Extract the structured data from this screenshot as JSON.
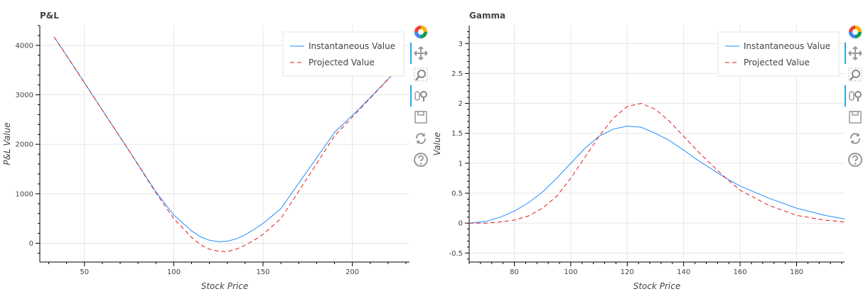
{
  "chart_data": [
    {
      "type": "line",
      "title": "P&L",
      "xlabel": "Stock Price",
      "ylabel": "P&L Value",
      "xlim": [
        25,
        232
      ],
      "ylim": [
        -380,
        4400
      ],
      "xticks": [
        50,
        100,
        150,
        200
      ],
      "yticks": [
        0,
        1000,
        2000,
        3000,
        4000
      ],
      "grid": true,
      "legend": "top-right",
      "series": [
        {
          "name": "Instantaneous Value",
          "color": "#1f8fff",
          "dash": "solid",
          "x": [
            33,
            45,
            60,
            75,
            90,
            100,
            110,
            115,
            120,
            125,
            130,
            135,
            140,
            145,
            150,
            160,
            175,
            190,
            205,
            222
          ],
          "y": [
            4170,
            3520,
            2690,
            1870,
            1040,
            570,
            250,
            130,
            60,
            30,
            40,
            90,
            170,
            280,
            400,
            700,
            1470,
            2240,
            2760,
            3390
          ]
        },
        {
          "name": "Projected Value",
          "color": "#e41a1c",
          "dash": "dashed",
          "x": [
            33,
            45,
            60,
            75,
            90,
            100,
            110,
            115,
            120,
            125,
            130,
            135,
            140,
            145,
            150,
            160,
            175,
            190,
            205,
            222
          ],
          "y": [
            4170,
            3520,
            2690,
            1870,
            1020,
            500,
            120,
            -30,
            -120,
            -160,
            -170,
            -120,
            -40,
            60,
            180,
            500,
            1330,
            2170,
            2740,
            3390
          ]
        }
      ]
    },
    {
      "type": "line",
      "title": "Gamma",
      "xlabel": "Stock Price",
      "ylabel": "Value",
      "xlim": [
        64,
        197
      ],
      "ylim": [
        -0.65,
        3.3
      ],
      "xticks": [
        80,
        100,
        120,
        140,
        160,
        180
      ],
      "yticks": [
        -0.5,
        0,
        0.5,
        1,
        1.5,
        2,
        2.5,
        3
      ],
      "ytick_labels": [
        "-0.5",
        "0",
        "0.5",
        "1",
        "1.5",
        "2",
        "2.5",
        "3"
      ],
      "grid": true,
      "legend": "top-right",
      "series": [
        {
          "name": "Instantaneous Value",
          "color": "#1f8fff",
          "dash": "solid",
          "x": [
            64,
            70,
            75,
            80,
            85,
            90,
            95,
            100,
            105,
            110,
            115,
            120,
            125,
            130,
            135,
            140,
            145,
            150,
            155,
            160,
            170,
            180,
            190,
            197
          ],
          "y": [
            0,
            0.03,
            0.1,
            0.2,
            0.34,
            0.52,
            0.75,
            1.0,
            1.25,
            1.45,
            1.57,
            1.62,
            1.6,
            1.5,
            1.38,
            1.22,
            1.05,
            0.9,
            0.75,
            0.62,
            0.42,
            0.25,
            0.13,
            0.07
          ]
        },
        {
          "name": "Projected Value",
          "color": "#e41a1c",
          "dash": "dashed",
          "x": [
            64,
            70,
            75,
            80,
            85,
            90,
            95,
            100,
            105,
            110,
            115,
            120,
            125,
            130,
            135,
            140,
            145,
            150,
            155,
            160,
            170,
            180,
            190,
            197
          ],
          "y": [
            0,
            0.0,
            0.02,
            0.05,
            0.12,
            0.25,
            0.45,
            0.75,
            1.1,
            1.45,
            1.75,
            1.95,
            2.0,
            1.9,
            1.7,
            1.45,
            1.2,
            0.97,
            0.75,
            0.55,
            0.3,
            0.13,
            0.05,
            0.02
          ]
        }
      ]
    }
  ],
  "toolbar": {
    "tools": [
      {
        "name": "bokeh-logo-icon",
        "active": false
      },
      {
        "name": "pan-icon",
        "active": true
      },
      {
        "name": "box-zoom-icon",
        "active": false
      },
      {
        "name": "wheel-zoom-icon",
        "active": true
      },
      {
        "name": "save-icon",
        "active": false
      },
      {
        "name": "reset-icon",
        "active": false
      },
      {
        "name": "help-icon",
        "active": false
      }
    ],
    "accent_color": "#26aae1"
  }
}
